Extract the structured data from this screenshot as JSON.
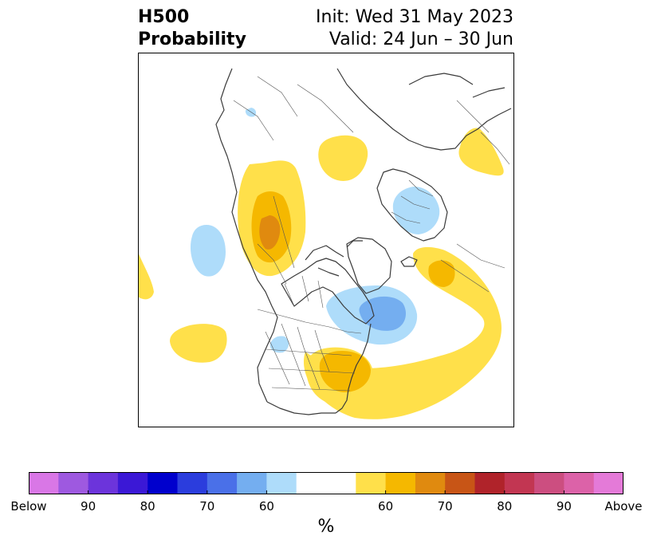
{
  "title": {
    "left_line1": "H500",
    "left_line2": "Probability",
    "right_line1": "Init: Wed 31 May 2023",
    "right_line2": "Valid: 24 Jun – 30 Jun"
  },
  "map": {
    "projection": "polar stereographic",
    "region": "North America / Atlantic / Europe",
    "anomalies": [
      {
        "region": "Alaska / Yukon",
        "sign": "above",
        "category": "60-70"
      },
      {
        "region": "Greenland / northern Europe",
        "sign": "above",
        "category": "60"
      },
      {
        "region": "Western Siberia",
        "sign": "above",
        "category": "60"
      },
      {
        "region": "Barents / Kara Sea",
        "sign": "below",
        "category": "60"
      },
      {
        "region": "Gulf of Alaska",
        "sign": "below",
        "category": "60"
      },
      {
        "region": "Labrador / Newfoundland",
        "sign": "below",
        "category": "60-70"
      },
      {
        "region": "Eastern United States",
        "sign": "above",
        "category": "60-65"
      },
      {
        "region": "North Atlantic",
        "sign": "above",
        "category": "60-65"
      },
      {
        "region": "Northeast Pacific",
        "sign": "above",
        "category": "60"
      },
      {
        "region": "Northern Plains",
        "sign": "below",
        "category": "60"
      }
    ]
  },
  "colorbar": {
    "unit": "%",
    "colors": [
      "#d977e6",
      "#9e59e0",
      "#6c34db",
      "#3b18d6",
      "#0000cd",
      "#2b3ddd",
      "#4a70e8",
      "#74aef0",
      "#aedcfa",
      "#ffffff",
      "#ffffff",
      "#ffe04a",
      "#f5b800",
      "#e08a0f",
      "#c85516",
      "#b0232a",
      "#c23652",
      "#cc4e80",
      "#dc62a8",
      "#e47ad8"
    ],
    "ticks": [
      {
        "label": "Below",
        "boundary": 0
      },
      {
        "label": "90",
        "boundary": 2
      },
      {
        "label": "80",
        "boundary": 4
      },
      {
        "label": "70",
        "boundary": 6
      },
      {
        "label": "60",
        "boundary": 8
      },
      {
        "label": "60",
        "boundary": 12
      },
      {
        "label": "70",
        "boundary": 14
      },
      {
        "label": "80",
        "boundary": 16
      },
      {
        "label": "90",
        "boundary": 18
      },
      {
        "label": "Above",
        "boundary": 20
      }
    ]
  }
}
